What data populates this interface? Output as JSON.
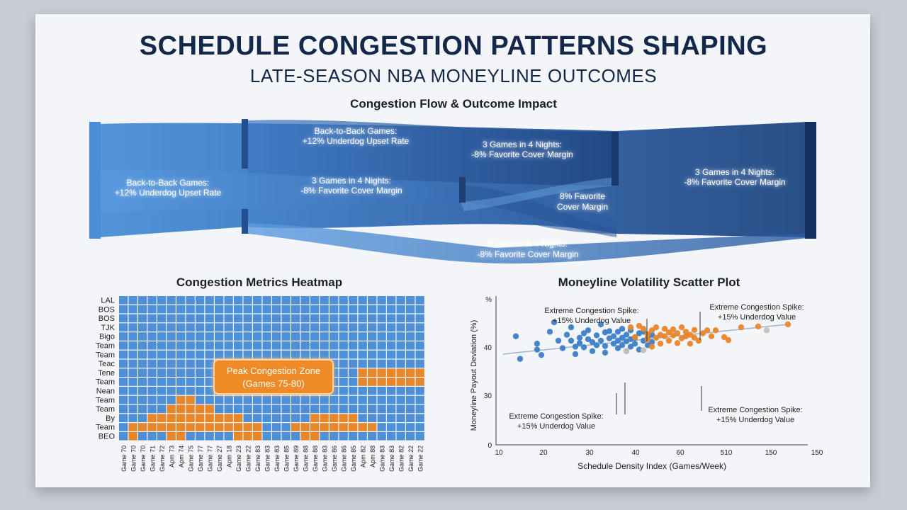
{
  "title": "SCHEDULE CONGESTION PATTERNS SHAPING",
  "subtitle": "LATE-SEASON NBA MONEYLINE OUTCOMES",
  "flow": {
    "title": "Congestion Flow & Outcome Impact",
    "labels": [
      {
        "l1": "Back-to-Back Games:",
        "l2": "+12% Underdog Upset Rate"
      },
      {
        "l1": "Back-to-Back Games:",
        "l2": "+12% Underdog Upset Rate"
      },
      {
        "l1": "3 Games in 4 Nights:",
        "l2": "-8% Favorite Cover Margin"
      },
      {
        "l1": "3 Games in 4 Nights:",
        "l2": "-8% Favorite Cover Margin"
      },
      {
        "l1": "3 Games in 4 Nights:",
        "l2": "-8% Favorite Cover Margin"
      },
      {
        "l1": "8% Favorite",
        "l2": "Cover Margin"
      },
      {
        "l1": "3 Games in 4 Nights:",
        "l2": "-8% Favorite Cover Margin"
      }
    ]
  },
  "heatmap": {
    "title": "Congestion Metrics Heatmap",
    "rows": [
      "LAL",
      "BOS",
      "BOS",
      "TJK",
      "Bigo",
      "Team",
      "Team",
      "Teac",
      "Tene",
      "Team",
      "Nean",
      "Team",
      "Team",
      "By",
      "Team",
      "BEO"
    ],
    "cols": [
      "Game 70",
      "Game 70",
      "Game 70",
      "Game 71",
      "Game 72",
      "Apm 73",
      "Apm 74",
      "Game 75",
      "Game 77",
      "Game 77",
      "Game 27",
      "Apm 18",
      "Game 23",
      "Game 22",
      "Game 83",
      "Game 83",
      "Game 83",
      "Game 85",
      "Game 89",
      "Game 88",
      "Game 88",
      "Game 83",
      "Game 86",
      "Game 86",
      "Game 85",
      "Apm 82",
      "Apm 88",
      "Game 83",
      "Game 83",
      "Game 82",
      "Game 22",
      "Game 22"
    ],
    "annotation": {
      "l1": "Peak Congestion Zone",
      "l2": "(Games 75-80)"
    },
    "colors": {
      "low": "#4f8fd6",
      "high": "#e8862a"
    }
  },
  "scatter": {
    "title": "Moneyline Volatility Scatter Plot",
    "annotations": [
      {
        "l1": "Extreme Congestion Spike:",
        "l2": "+15% Underdog Value"
      },
      {
        "l1": "Extreme Congestion Spike:",
        "l2": "+15% Underdog Value"
      },
      {
        "l1": "Extreme Congestion Spike:",
        "l2": "+15% Underdog Value"
      },
      {
        "l1": "Extreme Congestion Spike:",
        "l2": "+15% Underdog Value"
      }
    ],
    "colors": {
      "blue": "#3d7ec8",
      "orange": "#e8862a",
      "gray": "#c4c0b8"
    }
  },
  "chart_data": {
    "type": "scatter",
    "title": "Moneyline Volatility Scatter Plot",
    "xlabel": "Schedule Density Index (Games/Week)",
    "ylabel": "Moneyline Payout Deviation (%)",
    "xticks": [
      "10",
      "10",
      "20",
      "30",
      "40",
      "60",
      "510",
      "150",
      "150"
    ],
    "yticks": [
      "0",
      "30",
      "40",
      "%"
    ],
    "ylim": [
      0,
      50
    ],
    "trendline": [
      [
        0,
        30.5
      ],
      [
        67,
        40.5
      ]
    ],
    "series": [
      {
        "points": [
          [
            3,
            36.5
          ],
          [
            4,
            28.9
          ],
          [
            8,
            32
          ],
          [
            8,
            34
          ],
          [
            9,
            30.2
          ],
          [
            11,
            38
          ],
          [
            12,
            41.2
          ],
          [
            13,
            35
          ],
          [
            14,
            32.5
          ],
          [
            15,
            37
          ],
          [
            16,
            39.5
          ],
          [
            16,
            35
          ],
          [
            17,
            33
          ],
          [
            17,
            30.5
          ],
          [
            18,
            36
          ],
          [
            18,
            34.2
          ],
          [
            19,
            37.5
          ],
          [
            19,
            32.8
          ],
          [
            20,
            35.5
          ],
          [
            20,
            38.5
          ],
          [
            21,
            31.5
          ],
          [
            21,
            34.5
          ],
          [
            22,
            36.8
          ],
          [
            22,
            33.5
          ],
          [
            23,
            40.5
          ],
          [
            23,
            35
          ],
          [
            24,
            37.8
          ],
          [
            24,
            33.2
          ],
          [
            24,
            31
          ],
          [
            25,
            35.8
          ],
          [
            25,
            38.2
          ],
          [
            26,
            34
          ],
          [
            26,
            36.5
          ],
          [
            27,
            32.5
          ],
          [
            27,
            35
          ],
          [
            27,
            38
          ],
          [
            28,
            33.5
          ],
          [
            28,
            36
          ],
          [
            28,
            39
          ],
          [
            29,
            34.8
          ],
          [
            29,
            31.5
          ],
          [
            29,
            37
          ],
          [
            30,
            35.5
          ],
          [
            30,
            33
          ],
          [
            30,
            38.5
          ],
          [
            31,
            36
          ],
          [
            31,
            34
          ],
          [
            32,
            32
          ],
          [
            32,
            37.5
          ],
          [
            33,
            35
          ],
          [
            33,
            38
          ],
          [
            34,
            33.5
          ],
          [
            34,
            36
          ],
          [
            35,
            34.5
          ],
          [
            35,
            37
          ]
        ]
      },
      {
        "points": [
          [
            30,
            39.5
          ],
          [
            31,
            36.2
          ],
          [
            32,
            40
          ],
          [
            33,
            39
          ],
          [
            34,
            37.2
          ],
          [
            34,
            35.5
          ],
          [
            35,
            33
          ],
          [
            35,
            38.5
          ],
          [
            36,
            36
          ],
          [
            36,
            39.5
          ],
          [
            37,
            37
          ],
          [
            37,
            34
          ],
          [
            38,
            36.5
          ],
          [
            38,
            39
          ],
          [
            39,
            37.8
          ],
          [
            39,
            35
          ],
          [
            40,
            36.8
          ],
          [
            40,
            38.8
          ],
          [
            41,
            34.2
          ],
          [
            41,
            37.5
          ],
          [
            42,
            39.5
          ],
          [
            42,
            35.8
          ],
          [
            43,
            38
          ],
          [
            43,
            36.5
          ],
          [
            44,
            34
          ],
          [
            44,
            37
          ],
          [
            45,
            36
          ],
          [
            45,
            38.6
          ],
          [
            46,
            35
          ],
          [
            47,
            37.5
          ],
          [
            48,
            38.5
          ],
          [
            49,
            36.5
          ],
          [
            50,
            38.5
          ],
          [
            52,
            36.2
          ],
          [
            53,
            35.2
          ],
          [
            56,
            39.5
          ],
          [
            60,
            39.8
          ],
          [
            67,
            40.5
          ]
        ]
      },
      {
        "points": [
          [
            29,
            31.5
          ],
          [
            33,
            31.8
          ],
          [
            62,
            38.5
          ]
        ]
      }
    ]
  }
}
